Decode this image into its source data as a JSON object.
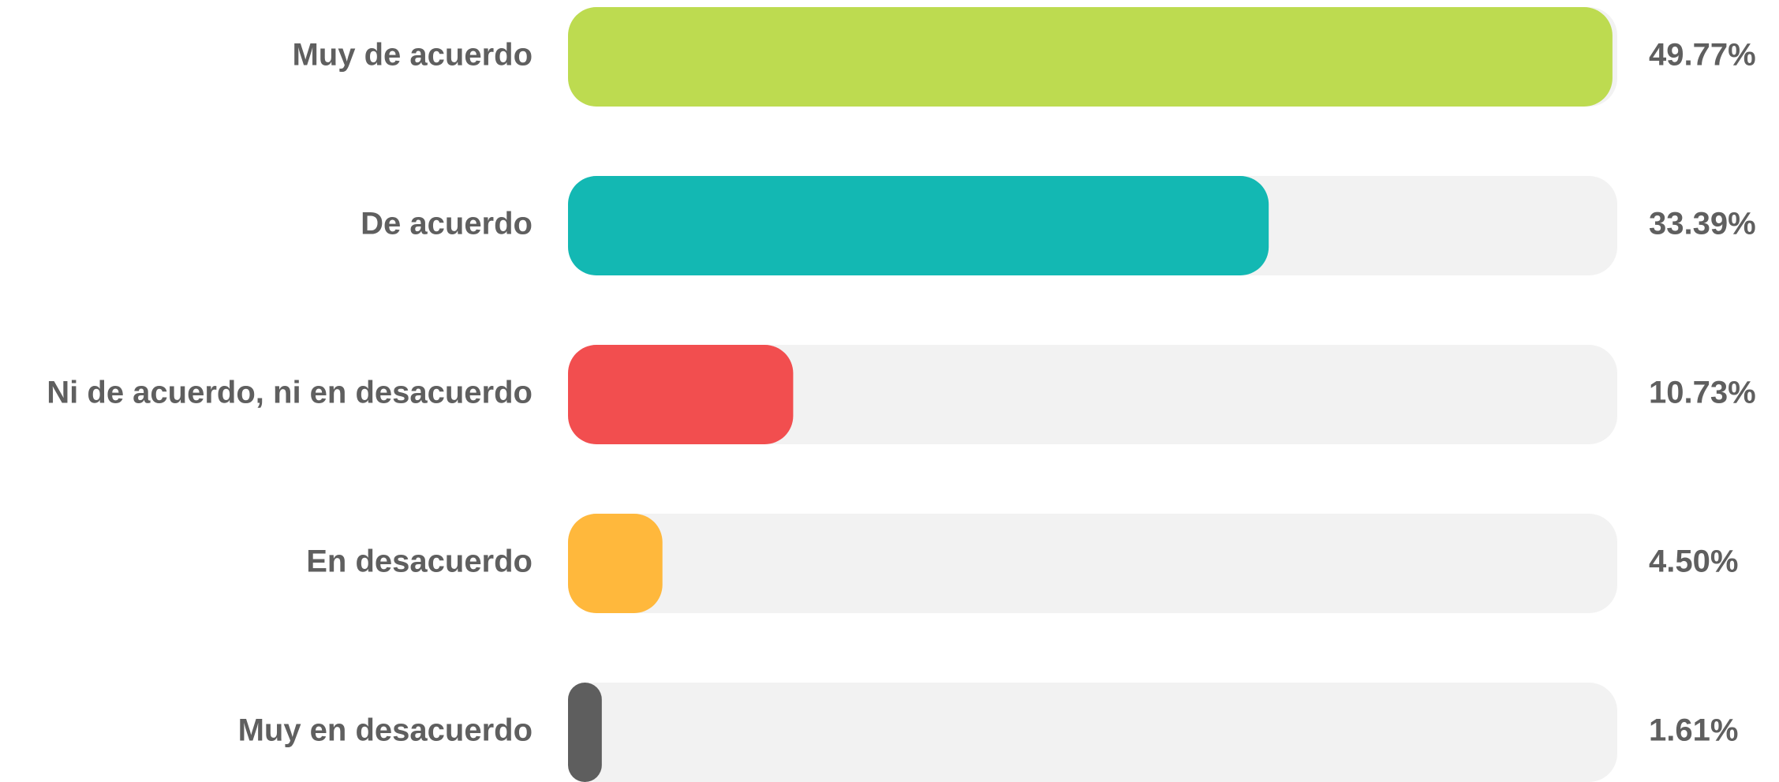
{
  "chart_data": {
    "type": "bar",
    "orientation": "horizontal",
    "categories": [
      "Muy de acuerdo",
      "De acuerdo",
      "Ni de acuerdo, ni en desacuerdo",
      "En desacuerdo",
      "Muy en desacuerdo"
    ],
    "values": [
      49.77,
      33.39,
      10.73,
      4.5,
      1.61
    ],
    "value_labels": [
      "49.77%",
      "33.39%",
      "10.73%",
      "4.50%",
      "1.61%"
    ],
    "colors": [
      "#bddb50",
      "#13b8b3",
      "#f24e4f",
      "#ffb83c",
      "#5e5e5e"
    ],
    "track_color": "#f2f2f2",
    "xlim": [
      0,
      50
    ]
  }
}
